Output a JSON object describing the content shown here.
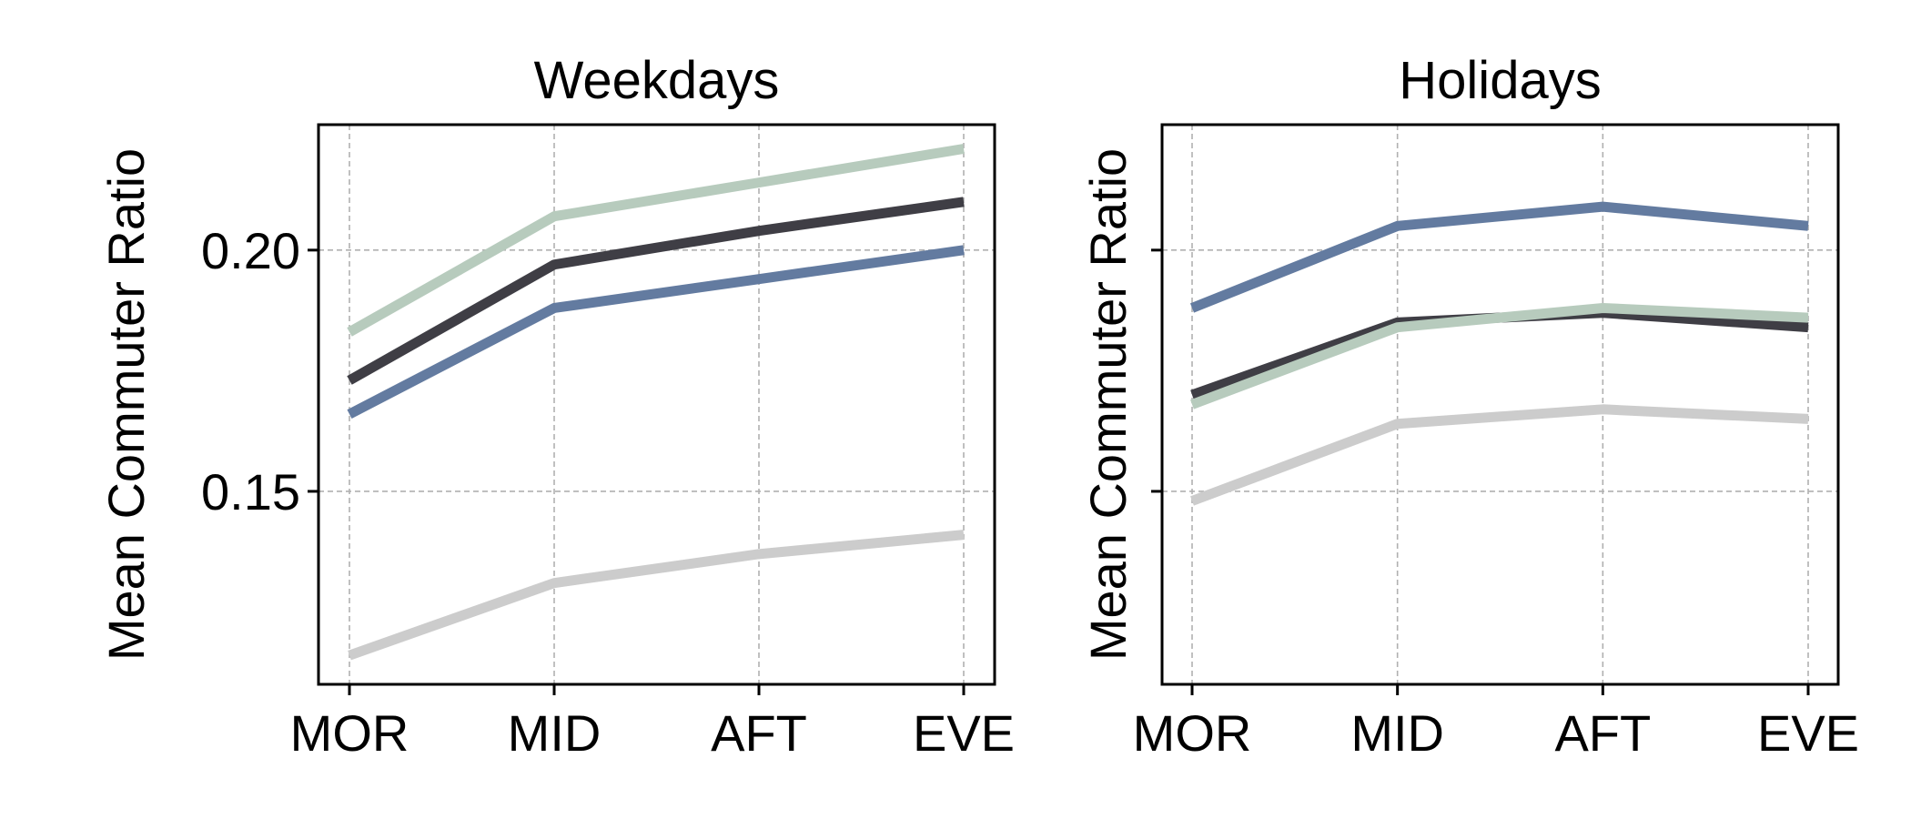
{
  "chart_data": [
    {
      "type": "line",
      "title": "Weekdays",
      "ylabel": "Mean Commuter Ratio",
      "categories": [
        "MOR",
        "MID",
        "AFT",
        "EVE"
      ],
      "yticks": [
        0.15,
        0.2
      ],
      "ytick_labels": [
        "0.15",
        "0.20"
      ],
      "ylim": [
        0.11,
        0.226
      ],
      "grid": true,
      "series": [
        {
          "color": "#cccccc",
          "values": [
            0.116,
            0.131,
            0.137,
            0.141
          ]
        },
        {
          "color": "#637ba0",
          "values": [
            0.166,
            0.188,
            0.194,
            0.2
          ]
        },
        {
          "color": "#3f3e45",
          "values": [
            0.173,
            0.197,
            0.204,
            0.21
          ]
        },
        {
          "color": "#b7cbbd",
          "values": [
            0.183,
            0.207,
            0.214,
            0.221
          ]
        }
      ]
    },
    {
      "type": "line",
      "title": "Holidays",
      "ylabel": "Mean Commuter Ratio",
      "categories": [
        "MOR",
        "MID",
        "AFT",
        "EVE"
      ],
      "yticks": [
        0.15,
        0.2
      ],
      "ytick_labels": [
        "",
        ""
      ],
      "ylim": [
        0.11,
        0.226
      ],
      "grid": true,
      "series": [
        {
          "color": "#cccccc",
          "values": [
            0.148,
            0.164,
            0.167,
            0.165
          ]
        },
        {
          "color": "#3f3e45",
          "values": [
            0.17,
            0.185,
            0.187,
            0.184
          ]
        },
        {
          "color": "#b7cbbd",
          "values": [
            0.168,
            0.184,
            0.188,
            0.186
          ]
        },
        {
          "color": "#637ba0",
          "values": [
            0.188,
            0.205,
            0.209,
            0.205
          ]
        }
      ]
    }
  ]
}
